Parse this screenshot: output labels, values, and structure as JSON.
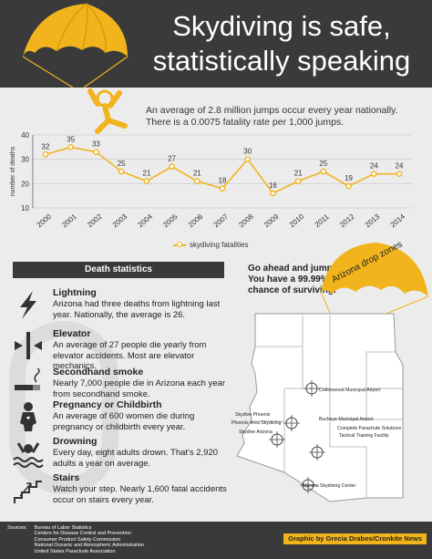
{
  "header": {
    "title_line1": "Skydiving is safe,",
    "title_line2": "statistically speaking"
  },
  "intro": "An average of 2.8 million jumps occur every year nationally. There is a 0.0075 fatality rate per 1,000 jumps.",
  "chart_data": {
    "type": "line",
    "title": "",
    "xlabel": "",
    "ylabel": "number of deaths",
    "x": [
      "2000",
      "2001",
      "2002",
      "2003",
      "2004",
      "2005",
      "2006",
      "2007",
      "2008",
      "2009",
      "2010",
      "2011",
      "2012",
      "2013",
      "2014"
    ],
    "series": [
      {
        "name": "skydiving fatalities",
        "values": [
          32,
          35,
          33,
          25,
          21,
          27,
          21,
          18,
          30,
          16,
          21,
          25,
          19,
          24,
          24
        ],
        "color": "#f2b41c"
      }
    ],
    "ylim": [
      10,
      40
    ],
    "yticks": [
      10,
      20,
      30,
      40
    ],
    "grid": true,
    "legend": "bottom-center"
  },
  "death_stats": {
    "header": "Death statistics",
    "items": [
      {
        "title": "Lightning",
        "desc": "Arizona had three deaths from lightning last year. Nationally, the average is 26.",
        "icon": "lightning-icon"
      },
      {
        "title": "Elevator",
        "desc": "An average of 27 people die yearly from elevator accidents. Most are elevator mechanics.",
        "icon": "elevator-icon"
      },
      {
        "title": "Secondhand smoke",
        "desc": "Nearly 7,000 people die in Arizona each year from secondhand smoke.",
        "icon": "cigarette-icon"
      },
      {
        "title": "Pregnancy or Childbirth",
        "desc": "An average of 600 women die during pregnancy or childbirth every year.",
        "icon": "pregnancy-icon"
      },
      {
        "title": "Drowning",
        "desc": "Every day, eight adults drown. That's 2,920 adults a year on average.",
        "icon": "drowning-icon"
      },
      {
        "title": "Stairs",
        "desc": "Watch your step. Nearly 1,600 fatal accidents occur on stairs every year.",
        "icon": "stairs-icon"
      }
    ]
  },
  "cta": "Go ahead and jump! You have a 99.99% chance of surviving.",
  "map": {
    "canopy_label": "Arizona drop zones",
    "zones": [
      "Cottonwood Municipal Airport",
      "Buckeye Municipal Airport",
      "Skydive Phoenix",
      "Phoenix Area Skydiving",
      "Skydive Arizona",
      "Complete Parachute Solutions",
      "Tactical Training Facility",
      "Marana Skydiving Center"
    ]
  },
  "footer": {
    "sources_label": "Sources:",
    "sources": [
      "Bureau of Labor Statistics",
      "Centers for Disease Control and Prevention",
      "Consumer Product Safety Commission",
      "National Oceanic and Atmospheric Administration",
      "United States Parachute Association"
    ],
    "credit": "Graphic by Grecia Drabos/Cronkite News"
  },
  "colors": {
    "accent": "#f2b41c",
    "dark": "#3a3a3a",
    "background": "#ececec"
  }
}
